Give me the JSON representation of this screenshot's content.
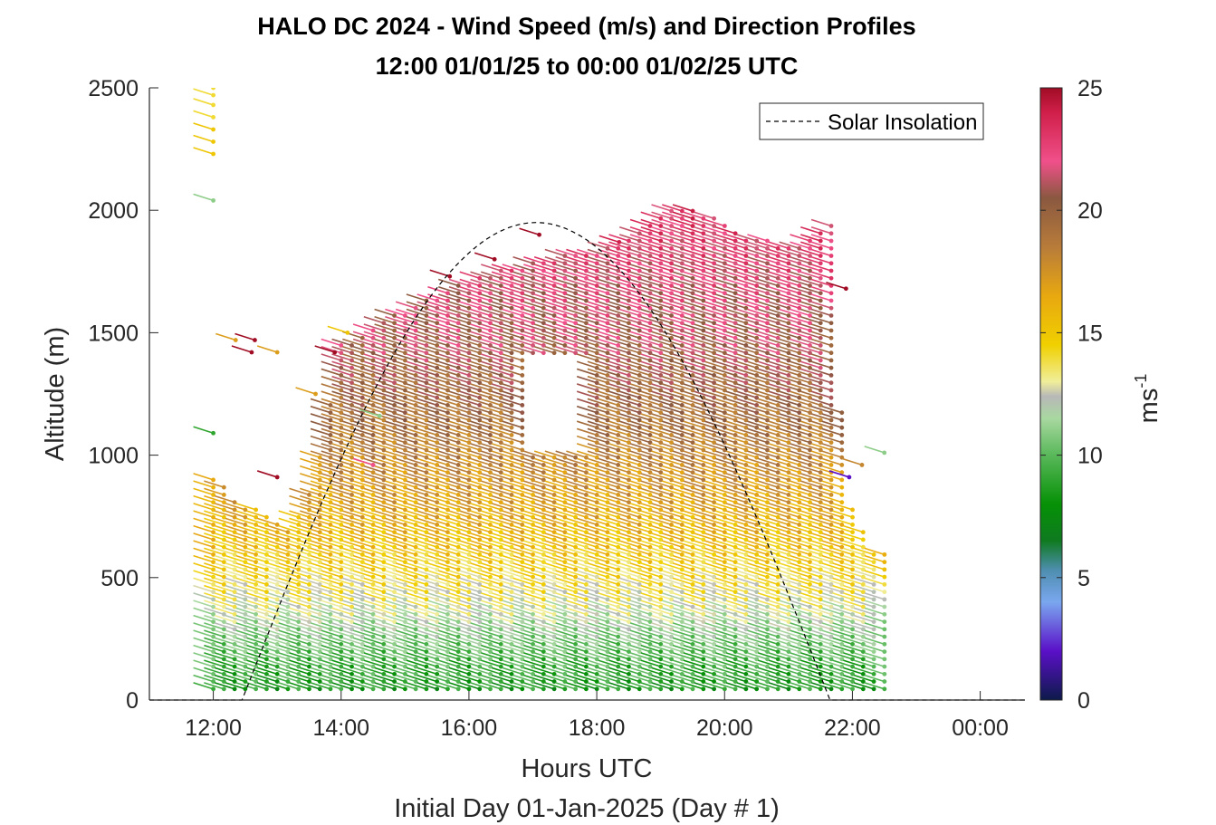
{
  "chart_data": {
    "type": "wind_barb_profile",
    "title": "HALO DC 2024 - Wind Speed (m/s) and Direction Profiles",
    "subtitle": "12:00 01/01/25 to 00:00 01/02/25  UTC",
    "xlabel": "Hours UTC",
    "ylabel": "Altitude (m)",
    "footnote": "Initial Day 01-Jan-2025 (Day # 1)",
    "x_tick_labels": [
      "12:00",
      "14:00",
      "16:00",
      "18:00",
      "20:00",
      "22:00",
      "00:00"
    ],
    "x_tick_hours": [
      12,
      14,
      16,
      18,
      20,
      22,
      24
    ],
    "xlim_hours": [
      11.0,
      24.7
    ],
    "y_ticks": [
      0,
      500,
      1000,
      1500,
      2000,
      2500
    ],
    "ylim": [
      0,
      2500
    ],
    "colorbar": {
      "label": "ms",
      "label_superscript": "-1",
      "ticks": [
        0,
        5,
        10,
        15,
        20,
        25
      ],
      "range": [
        0,
        25
      ],
      "stops": [
        {
          "value": 0,
          "color": "#0d1a4a"
        },
        {
          "value": 2,
          "color": "#5a10c8"
        },
        {
          "value": 4,
          "color": "#7aa7ef"
        },
        {
          "value": 5.3,
          "color": "#4e8eb0"
        },
        {
          "value": 6.5,
          "color": "#0f7a20"
        },
        {
          "value": 8,
          "color": "#069106"
        },
        {
          "value": 10,
          "color": "#59b85a"
        },
        {
          "value": 11.5,
          "color": "#a8d8a0"
        },
        {
          "value": 12.4,
          "color": "#b8b8b8"
        },
        {
          "value": 13,
          "color": "#f0ee9a"
        },
        {
          "value": 14.5,
          "color": "#f0d000"
        },
        {
          "value": 16.5,
          "color": "#e8a810"
        },
        {
          "value": 18.5,
          "color": "#b87c3a"
        },
        {
          "value": 20.5,
          "color": "#8a5840"
        },
        {
          "value": 22,
          "color": "#f0508a"
        },
        {
          "value": 24,
          "color": "#d01f4a"
        },
        {
          "value": 25,
          "color": "#a00c24"
        }
      ]
    },
    "legend": {
      "label": "Solar Insolation",
      "position": "top-right",
      "line_style": "dashed"
    },
    "solar_insolation": {
      "sunrise_hour": 12.45,
      "sunset_hour": 21.65,
      "peak_hour": 17.05,
      "peak_altitude_m": 1950
    },
    "profiles": {
      "start_hour": 12.0,
      "step_hours": 0.1667,
      "count": 64,
      "altitude_start_m": 45,
      "altitude_step_m": 30.5,
      "speed_by_altitude_ms": [
        {
          "alt": 0,
          "speed": 8
        },
        {
          "alt": 200,
          "speed": 10
        },
        {
          "alt": 400,
          "speed": 13
        },
        {
          "alt": 700,
          "speed": 16
        },
        {
          "alt": 1100,
          "speed": 19
        },
        {
          "alt": 1500,
          "speed": 21
        },
        {
          "alt": 2000,
          "speed": 23
        }
      ],
      "direction_note": "barbs point from west-northwest, tilted down to the right",
      "top_altitude_by_hour": [
        {
          "hour": 12.0,
          "alt": 910
        },
        {
          "hour": 12.45,
          "alt": 810
        },
        {
          "hour": 12.8,
          "alt": 760
        },
        {
          "hour": 13.2,
          "alt": 700
        },
        {
          "hour": 13.6,
          "alt": 900
        },
        {
          "hour": 14.0,
          "alt": 1450
        },
        {
          "hour": 14.8,
          "alt": 1580
        },
        {
          "hour": 15.5,
          "alt": 1650
        },
        {
          "hour": 16.0,
          "alt": 1720
        },
        {
          "hour": 16.8,
          "alt": 1780
        },
        {
          "hour": 17.5,
          "alt": 1820
        },
        {
          "hour": 18.2,
          "alt": 1850
        },
        {
          "hour": 18.8,
          "alt": 1960
        },
        {
          "hour": 19.4,
          "alt": 2030
        },
        {
          "hour": 20.3,
          "alt": 1900
        },
        {
          "hour": 21.2,
          "alt": 1850
        },
        {
          "hour": 21.7,
          "alt": 1950
        },
        {
          "hour": 21.9,
          "alt": 840
        },
        {
          "hour": 22.3,
          "alt": 620
        },
        {
          "hour": 22.7,
          "alt": 580
        }
      ],
      "gap": {
        "hour_start": 16.9,
        "hour_end": 17.9,
        "alt_start": 1000,
        "alt_end": 1400
      }
    },
    "isolated_barbs": [
      {
        "hour": 12.0,
        "alt": 2230,
        "speed": 15
      },
      {
        "hour": 12.0,
        "alt": 2280,
        "speed": 15
      },
      {
        "hour": 12.0,
        "alt": 2330,
        "speed": 15
      },
      {
        "hour": 12.0,
        "alt": 2380,
        "speed": 14
      },
      {
        "hour": 12.0,
        "alt": 2430,
        "speed": 14
      },
      {
        "hour": 12.0,
        "alt": 2470,
        "speed": 14
      },
      {
        "hour": 12.0,
        "alt": 2500,
        "speed": 14
      },
      {
        "hour": 12.0,
        "alt": 2040,
        "speed": 11
      },
      {
        "hour": 12.0,
        "alt": 1090,
        "speed": 9
      },
      {
        "hour": 12.35,
        "alt": 1470,
        "speed": 17
      },
      {
        "hour": 12.6,
        "alt": 1420,
        "speed": 25
      },
      {
        "hour": 12.65,
        "alt": 1470,
        "speed": 25
      },
      {
        "hour": 13.0,
        "alt": 1420,
        "speed": 17
      },
      {
        "hour": 13.0,
        "alt": 910,
        "speed": 25
      },
      {
        "hour": 13.6,
        "alt": 1250,
        "speed": 17
      },
      {
        "hour": 13.9,
        "alt": 1420,
        "speed": 25
      },
      {
        "hour": 14.1,
        "alt": 1500,
        "speed": 15
      },
      {
        "hour": 14.6,
        "alt": 1160,
        "speed": 11
      },
      {
        "hour": 14.5,
        "alt": 960,
        "speed": 22
      },
      {
        "hour": 15.7,
        "alt": 1730,
        "speed": 25
      },
      {
        "hour": 16.4,
        "alt": 1800,
        "speed": 25
      },
      {
        "hour": 17.1,
        "alt": 1900,
        "speed": 25
      },
      {
        "hour": 18.35,
        "alt": 1870,
        "speed": 24
      },
      {
        "hour": 21.9,
        "alt": 1680,
        "speed": 25
      },
      {
        "hour": 21.95,
        "alt": 910,
        "speed": 2
      },
      {
        "hour": 22.15,
        "alt": 960,
        "speed": 18
      },
      {
        "hour": 22.5,
        "alt": 1010,
        "speed": 11
      }
    ]
  }
}
